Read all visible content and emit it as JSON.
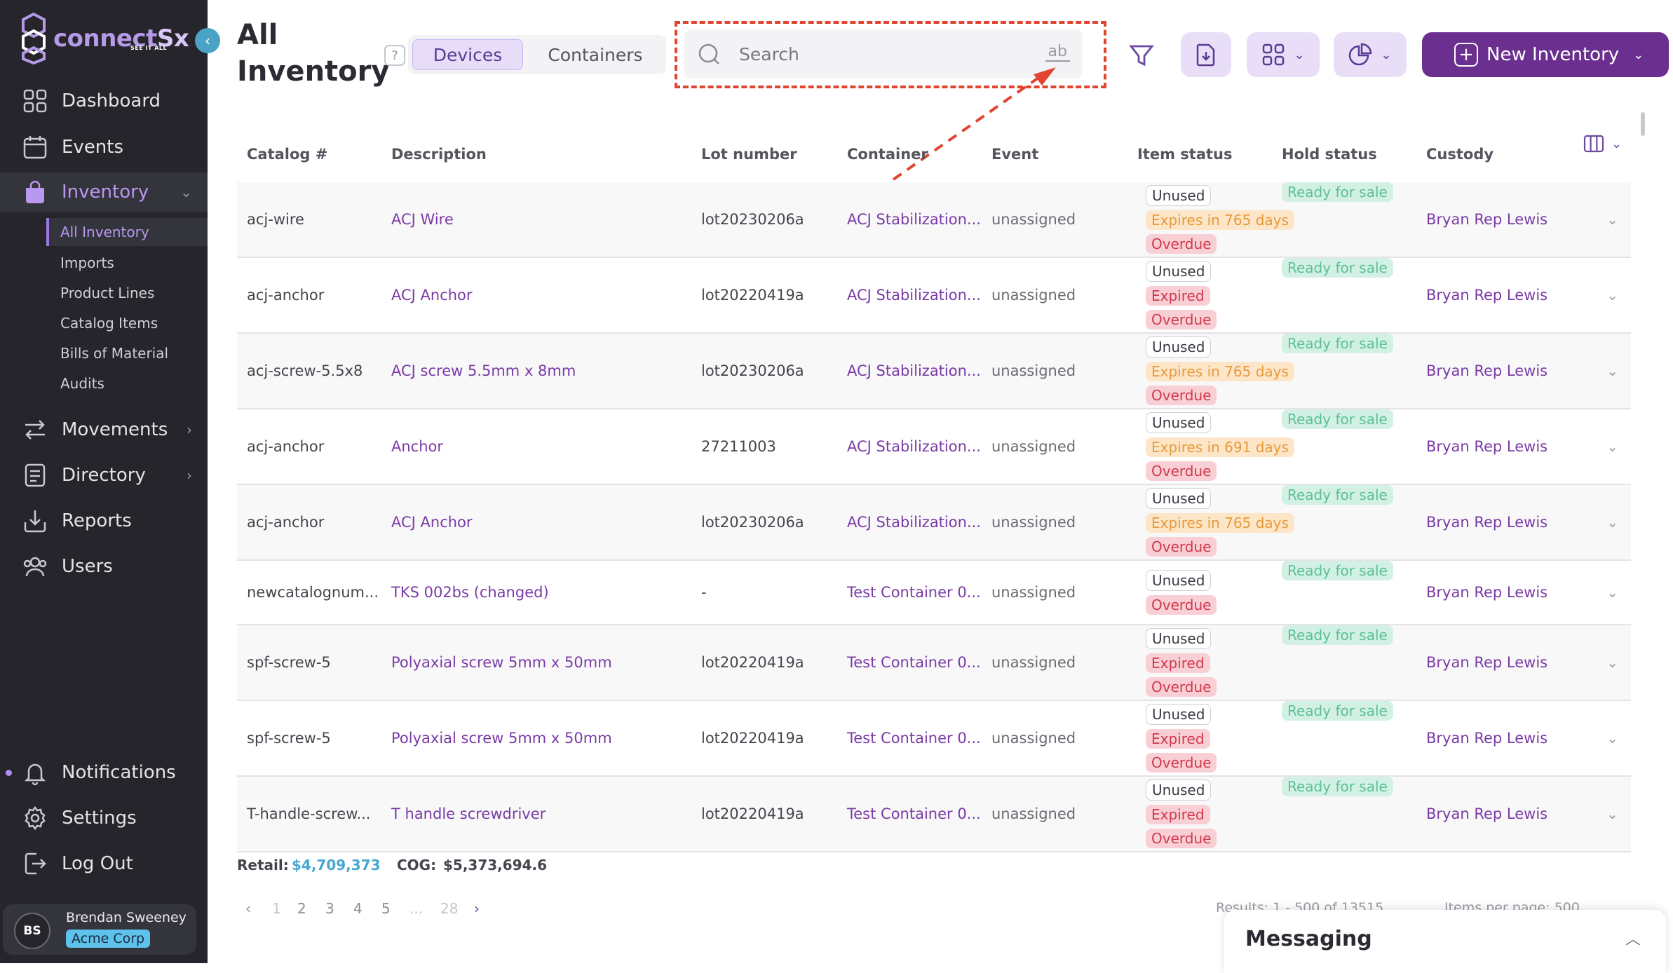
{
  "brand": {
    "name_part1": "connect",
    "name_part2": "Sx",
    "tagline": "SEE IT ALL"
  },
  "sidebar": {
    "items": [
      {
        "label": "Dashboard",
        "icon": "grid-icon"
      },
      {
        "label": "Events",
        "icon": "calendar-icon"
      },
      {
        "label": "Inventory",
        "icon": "bag-icon"
      },
      {
        "label": "Movements",
        "icon": "arrows-icon"
      },
      {
        "label": "Directory",
        "icon": "book-icon"
      },
      {
        "label": "Reports",
        "icon": "download-tray-icon"
      },
      {
        "label": "Users",
        "icon": "users-icon"
      }
    ],
    "inventory_subitems": [
      "All Inventory",
      "Imports",
      "Product Lines",
      "Catalog Items",
      "Bills of Material",
      "Audits"
    ],
    "bottom_items": [
      {
        "label": "Notifications",
        "icon": "bell-icon"
      },
      {
        "label": "Settings",
        "icon": "gear-icon"
      },
      {
        "label": "Log Out",
        "icon": "logout-icon"
      }
    ],
    "user": {
      "initials": "BS",
      "name": "Brendan Sweeney",
      "org": "Acme Corp"
    }
  },
  "header": {
    "title": "All Inventory",
    "help": "?",
    "tabs": [
      "Devices",
      "Containers"
    ],
    "active_tab": "Devices",
    "search_placeholder": "Search",
    "search_mode": "ab",
    "new_button": "New Inventory"
  },
  "table": {
    "columns": [
      "Catalog #",
      "Description",
      "Lot number",
      "Container",
      "Event",
      "Item status",
      "Hold status",
      "Custody"
    ],
    "rows": [
      {
        "catalog": "acj-wire",
        "description": "ACJ Wire",
        "lot": "lot20230206a",
        "container": "ACJ Stabilization...",
        "event": "unassigned",
        "statuses": [
          [
            "unused",
            "Unused"
          ],
          [
            "expires",
            "Expires in 765 days"
          ],
          [
            "overdue",
            "Overdue"
          ]
        ],
        "hold": "Ready for sale",
        "custody": "Bryan Rep Lewis"
      },
      {
        "catalog": "acj-anchor",
        "description": "ACJ Anchor",
        "lot": "lot20220419a",
        "container": "ACJ Stabilization...",
        "event": "unassigned",
        "statuses": [
          [
            "unused",
            "Unused"
          ],
          [
            "expired",
            "Expired"
          ],
          [
            "overdue",
            "Overdue"
          ]
        ],
        "hold": "Ready for sale",
        "custody": "Bryan Rep Lewis"
      },
      {
        "catalog": "acj-screw-5.5x8",
        "description": "ACJ screw 5.5mm x 8mm",
        "lot": "lot20230206a",
        "container": "ACJ Stabilization...",
        "event": "unassigned",
        "statuses": [
          [
            "unused",
            "Unused"
          ],
          [
            "expires",
            "Expires in 765 days"
          ],
          [
            "overdue",
            "Overdue"
          ]
        ],
        "hold": "Ready for sale",
        "custody": "Bryan Rep Lewis"
      },
      {
        "catalog": "acj-anchor",
        "description": "Anchor",
        "lot": "27211003",
        "container": "ACJ Stabilization...",
        "event": "unassigned",
        "statuses": [
          [
            "unused",
            "Unused"
          ],
          [
            "expires",
            "Expires in 691 days"
          ],
          [
            "overdue",
            "Overdue"
          ]
        ],
        "hold": "Ready for sale",
        "custody": "Bryan Rep Lewis"
      },
      {
        "catalog": "acj-anchor",
        "description": "ACJ Anchor",
        "lot": "lot20230206a",
        "container": "ACJ Stabilization...",
        "event": "unassigned",
        "statuses": [
          [
            "unused",
            "Unused"
          ],
          [
            "expires",
            "Expires in 765 days"
          ],
          [
            "overdue",
            "Overdue"
          ]
        ],
        "hold": "Ready for sale",
        "custody": "Bryan Rep Lewis"
      },
      {
        "catalog": "newcatalognum...",
        "description": "TKS 002bs (changed)",
        "lot": "-",
        "container": "Test Container 0...",
        "event": "unassigned",
        "statuses": [
          [
            "unused",
            "Unused"
          ],
          [
            "overdue",
            "Overdue"
          ]
        ],
        "hold": "Ready for sale",
        "custody": "Bryan Rep Lewis"
      },
      {
        "catalog": "spf-screw-5",
        "description": "Polyaxial screw 5mm x 50mm",
        "lot": "lot20220419a",
        "container": "Test Container 0...",
        "event": "unassigned",
        "statuses": [
          [
            "unused",
            "Unused"
          ],
          [
            "expired",
            "Expired"
          ],
          [
            "overdue",
            "Overdue"
          ]
        ],
        "hold": "Ready for sale",
        "custody": "Bryan Rep Lewis"
      },
      {
        "catalog": "spf-screw-5",
        "description": "Polyaxial screw 5mm x 50mm",
        "lot": "lot20220419a",
        "container": "Test Container 0...",
        "event": "unassigned",
        "statuses": [
          [
            "unused",
            "Unused"
          ],
          [
            "expired",
            "Expired"
          ],
          [
            "overdue",
            "Overdue"
          ]
        ],
        "hold": "Ready for sale",
        "custody": "Bryan Rep Lewis"
      },
      {
        "catalog": "T-handle-screw...",
        "description": "T handle screwdriver",
        "lot": "lot20220419a",
        "container": "Test Container 0...",
        "event": "unassigned",
        "statuses": [
          [
            "unused",
            "Unused"
          ],
          [
            "expired",
            "Expired"
          ],
          [
            "overdue",
            "Overdue"
          ]
        ],
        "hold": "Ready for sale",
        "custody": "Bryan Rep Lewis"
      }
    ]
  },
  "footer": {
    "retail_label": "Retail:",
    "retail_value": "$4,709,373",
    "cog_label": "COG:",
    "cog_value": "$5,373,694.6",
    "pages": [
      "1",
      "2",
      "3",
      "4",
      "5",
      "...",
      "28"
    ],
    "results_text": "Results: 1 - 500 of 13515",
    "items_per_page_label": "Items per page:",
    "items_per_page_value": "500"
  },
  "messaging": {
    "title": "Messaging"
  },
  "colors": {
    "accent": "#6b2f8f",
    "sidebar_bg": "#25252b",
    "link": "#7a3aa6",
    "highlight": "#e0452f"
  }
}
